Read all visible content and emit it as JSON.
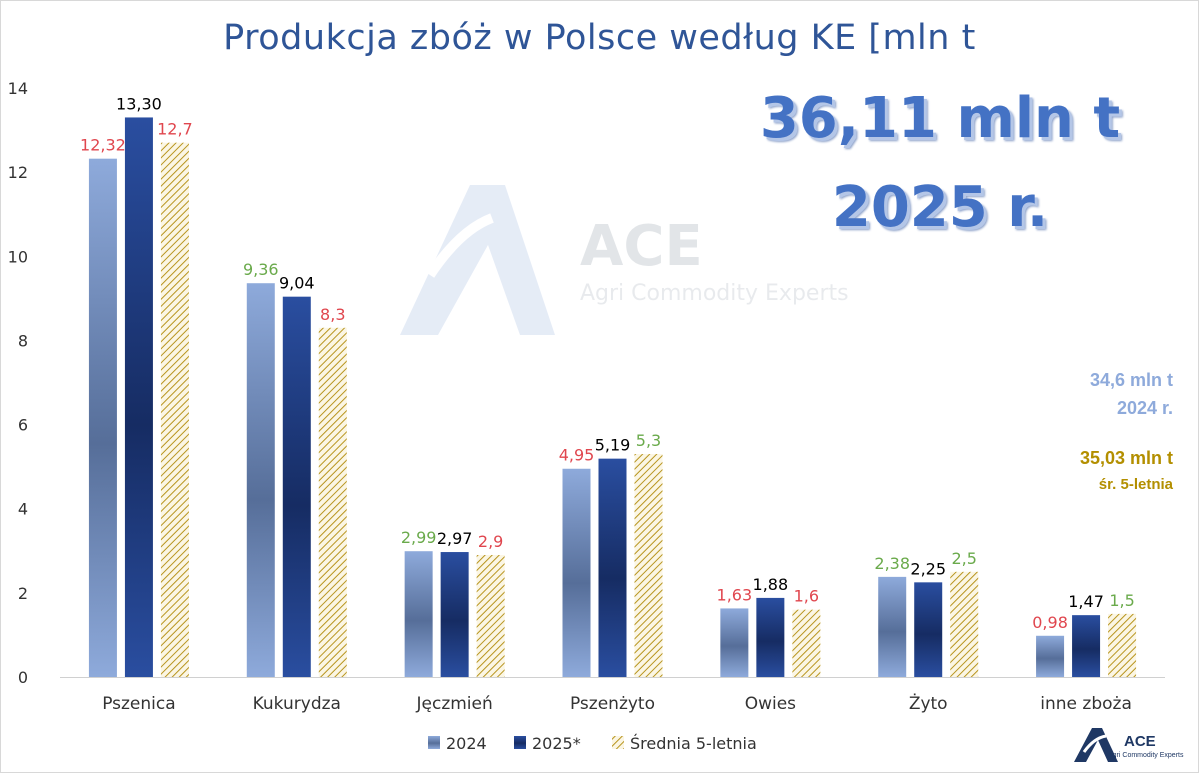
{
  "chart_data": {
    "type": "bar",
    "title": "Produkcja zbóż w Polsce według KE [mln t",
    "categories": [
      "Pszenica",
      "Kukurydza",
      "Jęczmień",
      "Pszenżyto",
      "Owies",
      "Żyto",
      "inne zboża"
    ],
    "series": [
      {
        "name": "2024",
        "values": [
          12.32,
          9.36,
          2.99,
          4.95,
          1.63,
          2.38,
          0.98
        ],
        "labels": [
          "12,32",
          "9,36",
          "2,99",
          "4,95",
          "1,63",
          "2,38",
          "0,98"
        ],
        "label_colors": [
          "#e0464e",
          "#6aaa4b",
          "#6aaa4b",
          "#e0464e",
          "#e0464e",
          "#6aaa4b",
          "#e0464e"
        ],
        "color": "#8eaadb",
        "fill": "gradient"
      },
      {
        "name": "2025*",
        "values": [
          13.3,
          9.04,
          2.97,
          5.19,
          1.88,
          2.25,
          1.47
        ],
        "labels": [
          "13,30",
          "9,04",
          "2,97",
          "5,19",
          "1,88",
          "2,25",
          "1,47"
        ],
        "label_colors": [
          "#000000",
          "#000000",
          "#000000",
          "#000000",
          "#000000",
          "#000000",
          "#000000"
        ],
        "color": "#1f3f8f",
        "fill": "gradient"
      },
      {
        "name": "Średnia 5-letnia",
        "values": [
          12.7,
          8.3,
          2.9,
          5.3,
          1.6,
          2.5,
          1.5
        ],
        "labels": [
          "12,7",
          "8,3",
          "2,9",
          "5,3",
          "1,6",
          "2,5",
          "1,5"
        ],
        "label_colors": [
          "#e0464e",
          "#e0464e",
          "#e0464e",
          "#6aaa4b",
          "#e0464e",
          "#6aaa4b",
          "#6aaa4b"
        ],
        "color": "#c9a227",
        "fill": "hatch"
      }
    ],
    "ylim": [
      0,
      14
    ],
    "yticks": [
      0,
      2,
      4,
      6,
      8,
      10,
      12,
      14
    ],
    "grid": false,
    "legend": "bottom",
    "xlabel": "",
    "ylabel": ""
  },
  "annotations": {
    "total_2025_value": "36,11 mln t",
    "total_2025_year": "2025 r.",
    "total_2024_value": "34,6 mln t",
    "total_2024_year": "2024 r.",
    "total_avg_value": "35,03 mln t",
    "total_avg_label": "śr. 5-letnia",
    "colors": {
      "total_2025": "#4472c4",
      "total_2024": "#8eaadb",
      "total_avg": "#b38f00"
    }
  },
  "watermark": {
    "brand": "ACE",
    "tagline": "Agri Commodity Experts"
  },
  "logo": {
    "brand": "ACE",
    "tagline": "Agri Commodity Experts"
  }
}
